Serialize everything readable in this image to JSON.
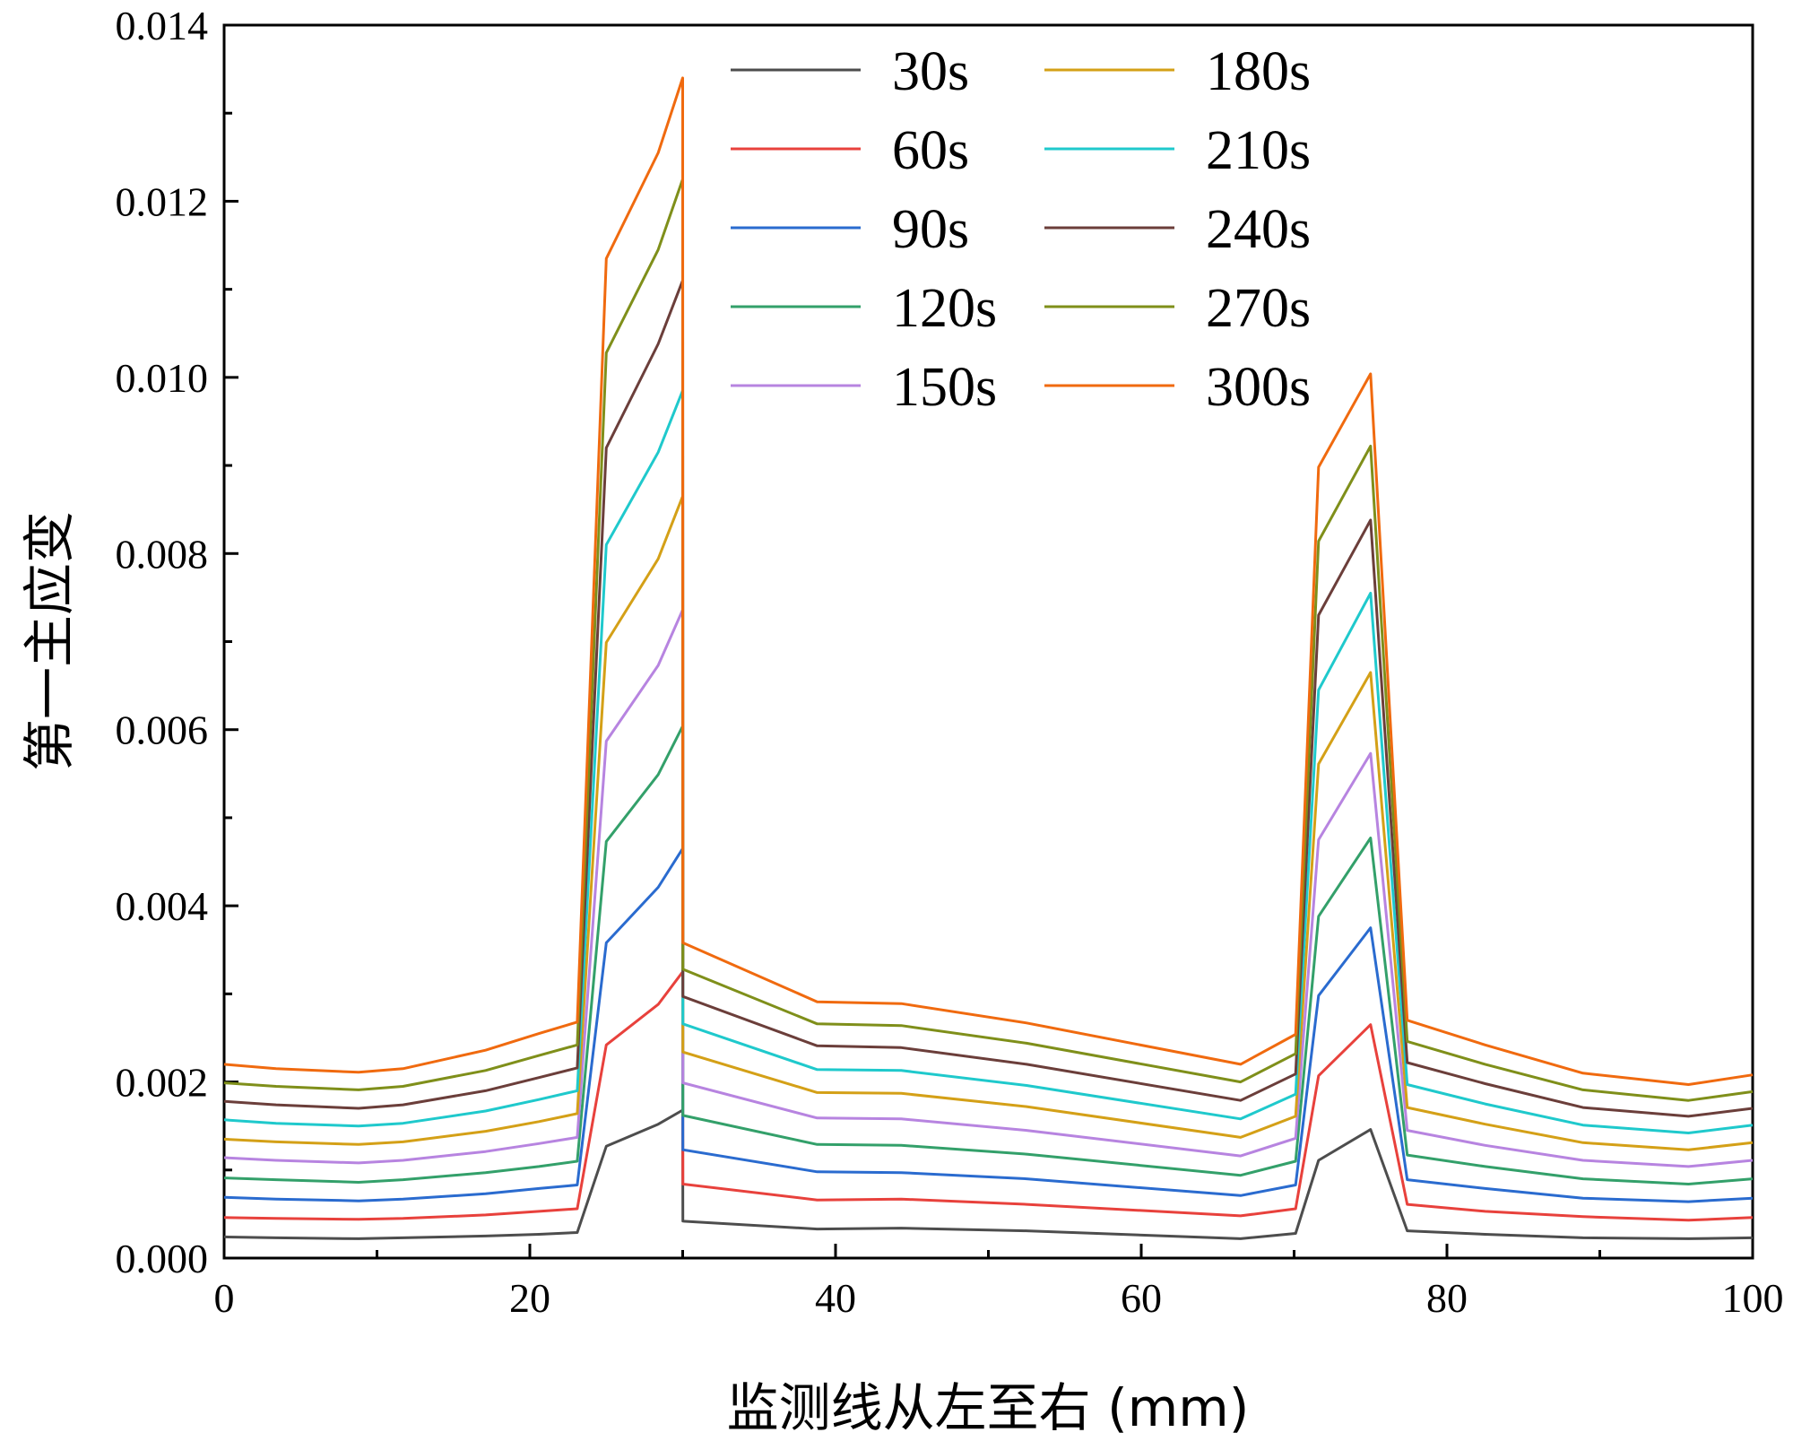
{
  "chart_data": {
    "type": "line",
    "title": "",
    "xlabel": "监测线从左至右 (mm)",
    "ylabel": "第一主应变",
    "xlim": [
      0,
      100
    ],
    "ylim": [
      0,
      0.014
    ],
    "x_ticks": [
      0,
      20,
      40,
      60,
      80,
      100
    ],
    "x_tick_labels": [
      "0",
      "20",
      "40",
      "60",
      "80",
      "100"
    ],
    "y_ticks": [
      0,
      0.002,
      0.004,
      0.006,
      0.008,
      0.01,
      0.012,
      0.014
    ],
    "y_tick_labels": [
      "0.000",
      "0.002",
      "0.004",
      "0.006",
      "0.008",
      "0.010",
      "0.012",
      "0.014"
    ],
    "legend_position": "top-center",
    "x": [
      0,
      3.4,
      8.8,
      11.7,
      17.1,
      20.6,
      23.1,
      25,
      28.4,
      30,
      30.01,
      38.8,
      44.3,
      52.5,
      66.5,
      70.1,
      71.6,
      75,
      77.4,
      82.5,
      88.9,
      95.8,
      100
    ],
    "series": [
      {
        "name": "30s",
        "color": "#4d4d4d",
        "values": [
          0.00024,
          0.00023,
          0.00022,
          0.00023,
          0.00025,
          0.00027,
          0.00029,
          0.00127,
          0.00152,
          0.00168,
          0.00042,
          0.00033,
          0.00034,
          0.00031,
          0.00022,
          0.00028,
          0.00111,
          0.00146,
          0.00031,
          0.00027,
          0.00023,
          0.00022,
          0.00023
        ]
      },
      {
        "name": "60s",
        "color": "#e8413c",
        "values": [
          0.00046,
          0.00045,
          0.00044,
          0.00045,
          0.00049,
          0.00053,
          0.00056,
          0.00242,
          0.00288,
          0.00325,
          0.00084,
          0.00066,
          0.00067,
          0.00061,
          0.00048,
          0.00056,
          0.00207,
          0.00265,
          0.00061,
          0.00053,
          0.00047,
          0.00043,
          0.00046
        ]
      },
      {
        "name": "90s",
        "color": "#2a6bcf",
        "values": [
          0.00069,
          0.00067,
          0.00065,
          0.00067,
          0.00073,
          0.00079,
          0.00083,
          0.00358,
          0.00421,
          0.00465,
          0.00123,
          0.00098,
          0.00097,
          0.0009,
          0.00071,
          0.00083,
          0.00298,
          0.00375,
          0.00089,
          0.00079,
          0.00068,
          0.00064,
          0.00068
        ]
      },
      {
        "name": "120s",
        "color": "#33a06a",
        "values": [
          0.00091,
          0.00089,
          0.00086,
          0.00089,
          0.00097,
          0.00104,
          0.0011,
          0.00473,
          0.00549,
          0.00604,
          0.00162,
          0.00129,
          0.00128,
          0.00118,
          0.00094,
          0.0011,
          0.00388,
          0.00477,
          0.00117,
          0.00104,
          0.0009,
          0.00084,
          0.0009
        ]
      },
      {
        "name": "150s",
        "color": "#b784e0",
        "values": [
          0.00114,
          0.00111,
          0.00108,
          0.00111,
          0.00121,
          0.0013,
          0.00137,
          0.00587,
          0.00673,
          0.00736,
          0.00199,
          0.00159,
          0.00158,
          0.00145,
          0.00116,
          0.00136,
          0.00475,
          0.00573,
          0.00145,
          0.00128,
          0.00111,
          0.00104,
          0.00111
        ]
      },
      {
        "name": "180s",
        "color": "#d4a017",
        "values": [
          0.00135,
          0.00132,
          0.00129,
          0.00132,
          0.00144,
          0.00155,
          0.00164,
          0.00699,
          0.00794,
          0.00865,
          0.00234,
          0.00188,
          0.00187,
          0.00172,
          0.00137,
          0.00161,
          0.00561,
          0.00665,
          0.00171,
          0.00152,
          0.00131,
          0.00123,
          0.00131
        ]
      },
      {
        "name": "210s",
        "color": "#1fc9cc",
        "values": [
          0.00157,
          0.00153,
          0.0015,
          0.00153,
          0.00167,
          0.0018,
          0.0019,
          0.0081,
          0.00915,
          0.00985,
          0.00266,
          0.00214,
          0.00213,
          0.00196,
          0.00158,
          0.00186,
          0.00645,
          0.00755,
          0.00197,
          0.00175,
          0.00151,
          0.00142,
          0.00151
        ]
      },
      {
        "name": "240s",
        "color": "#6b3e3a",
        "values": [
          0.00178,
          0.00174,
          0.0017,
          0.00174,
          0.0019,
          0.00205,
          0.00216,
          0.0092,
          0.01038,
          0.0111,
          0.00297,
          0.00241,
          0.00239,
          0.0022,
          0.00179,
          0.00209,
          0.0073,
          0.00838,
          0.00222,
          0.00198,
          0.00171,
          0.00161,
          0.0017
        ]
      },
      {
        "name": "270s",
        "color": "#7f8f1a",
        "values": [
          0.00199,
          0.00195,
          0.00191,
          0.00195,
          0.00213,
          0.0023,
          0.00242,
          0.01028,
          0.01145,
          0.01225,
          0.00328,
          0.00266,
          0.00264,
          0.00244,
          0.002,
          0.00232,
          0.00814,
          0.00922,
          0.00246,
          0.0022,
          0.00191,
          0.00179,
          0.00189
        ]
      },
      {
        "name": "300s",
        "color": "#f06a0f",
        "values": [
          0.0022,
          0.00215,
          0.00211,
          0.00215,
          0.00236,
          0.00255,
          0.00268,
          0.01135,
          0.01255,
          0.0134,
          0.00358,
          0.00291,
          0.00289,
          0.00267,
          0.0022,
          0.00254,
          0.00898,
          0.01004,
          0.0027,
          0.00242,
          0.0021,
          0.00197,
          0.00208
        ]
      }
    ]
  }
}
